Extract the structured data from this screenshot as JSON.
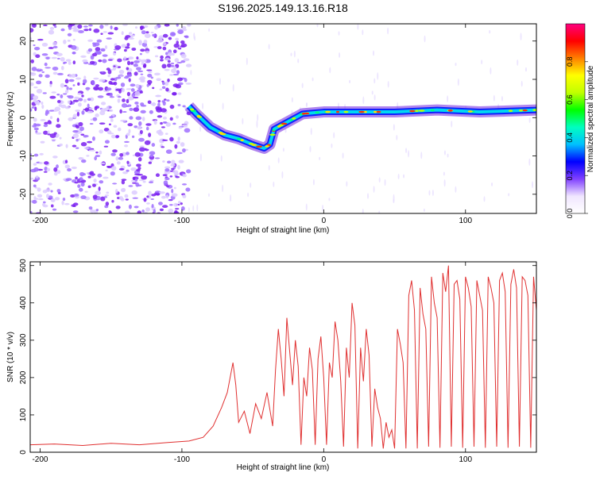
{
  "title": "S196.2025.149.13.16.R18",
  "chart_data": [
    {
      "type": "heatmap",
      "xlabel": "Height of straight line (km)",
      "ylabel": "Frequency (Hz)",
      "xlim": [
        -207,
        150
      ],
      "ylim": [
        -25,
        24.5
      ],
      "xticks": [
        -200,
        -100,
        0,
        100
      ],
      "yticks": [
        -20,
        -10,
        0,
        10,
        20
      ],
      "colorbar": {
        "label": "Normalized spectral amplitude",
        "ticks": [
          0.0,
          0.2,
          0.4,
          0.6,
          0.8
        ],
        "range": [
          0,
          1
        ],
        "stops": [
          "#ffffff",
          "#f0e6ff",
          "#8040ff",
          "#0000ff",
          "#00c0ff",
          "#00ffc0",
          "#00ff00",
          "#c0ff00",
          "#ffff00",
          "#ff8000",
          "#ff0000",
          "#ff0080"
        ]
      },
      "track": {
        "x": [
          -95,
          -90,
          -80,
          -70,
          -60,
          -50,
          -42,
          -38,
          -35,
          -25,
          -15,
          0,
          20,
          50,
          80,
          110,
          150
        ],
        "y": [
          3,
          1,
          -2.5,
          -4.5,
          -5.5,
          -7,
          -8,
          -7,
          -3,
          -1,
          1,
          1.5,
          1.5,
          1.5,
          2,
          1.5,
          2
        ]
      }
    },
    {
      "type": "line",
      "xlabel": "Height of straight line (km)",
      "ylabel": "SNR (10 * v/v)",
      "xlim": [
        -207,
        150
      ],
      "ylim": [
        0,
        510
      ],
      "xticks": [
        -200,
        -100,
        0,
        100
      ],
      "yticks": [
        0,
        100,
        200,
        300,
        400,
        500
      ],
      "series": [
        {
          "color": "#e03030",
          "x": [
            -207,
            -190,
            -170,
            -150,
            -130,
            -110,
            -95,
            -85,
            -78,
            -72,
            -68,
            -64,
            -62,
            -60,
            -56,
            -52,
            -48,
            -44,
            -40,
            -36,
            -34,
            -32,
            -30,
            -28,
            -26,
            -24,
            -22,
            -20,
            -18,
            -16,
            -14,
            -12,
            -10,
            -8,
            -6,
            -4,
            -2,
            0,
            2,
            4,
            6,
            8,
            10,
            12,
            14,
            16,
            18,
            20,
            22,
            24,
            26,
            28,
            30,
            32,
            34,
            36,
            38,
            40,
            42,
            44,
            46,
            48,
            50,
            52,
            54,
            56,
            58,
            60,
            62,
            64,
            66,
            68,
            70,
            72,
            74,
            76,
            78,
            80,
            82,
            84,
            86,
            88,
            90,
            92,
            94,
            96,
            98,
            100,
            102,
            104,
            106,
            108,
            110,
            112,
            114,
            116,
            118,
            120,
            122,
            124,
            126,
            128,
            130,
            132,
            134,
            136,
            138,
            140,
            142,
            144,
            146,
            148,
            150
          ],
          "y": [
            20,
            22,
            18,
            24,
            20,
            26,
            30,
            40,
            70,
            120,
            160,
            240,
            180,
            80,
            110,
            50,
            130,
            90,
            160,
            70,
            220,
            330,
            250,
            150,
            360,
            270,
            180,
            300,
            230,
            20,
            200,
            150,
            280,
            220,
            20,
            250,
            310,
            200,
            20,
            240,
            200,
            350,
            300,
            190,
            15,
            280,
            200,
            400,
            340,
            10,
            280,
            190,
            330,
            260,
            15,
            170,
            120,
            90,
            10,
            80,
            40,
            60,
            10,
            330,
            290,
            240,
            10,
            420,
            460,
            380,
            10,
            440,
            370,
            330,
            15,
            470,
            400,
            360,
            12,
            480,
            430,
            500,
            15,
            450,
            460,
            410,
            12,
            470,
            440,
            390,
            15,
            460,
            420,
            380,
            12,
            470,
            440,
            400,
            15,
            460,
            480,
            430,
            12,
            450,
            490,
            440,
            15,
            470,
            460,
            420,
            12,
            470,
            380
          ]
        }
      ]
    }
  ]
}
